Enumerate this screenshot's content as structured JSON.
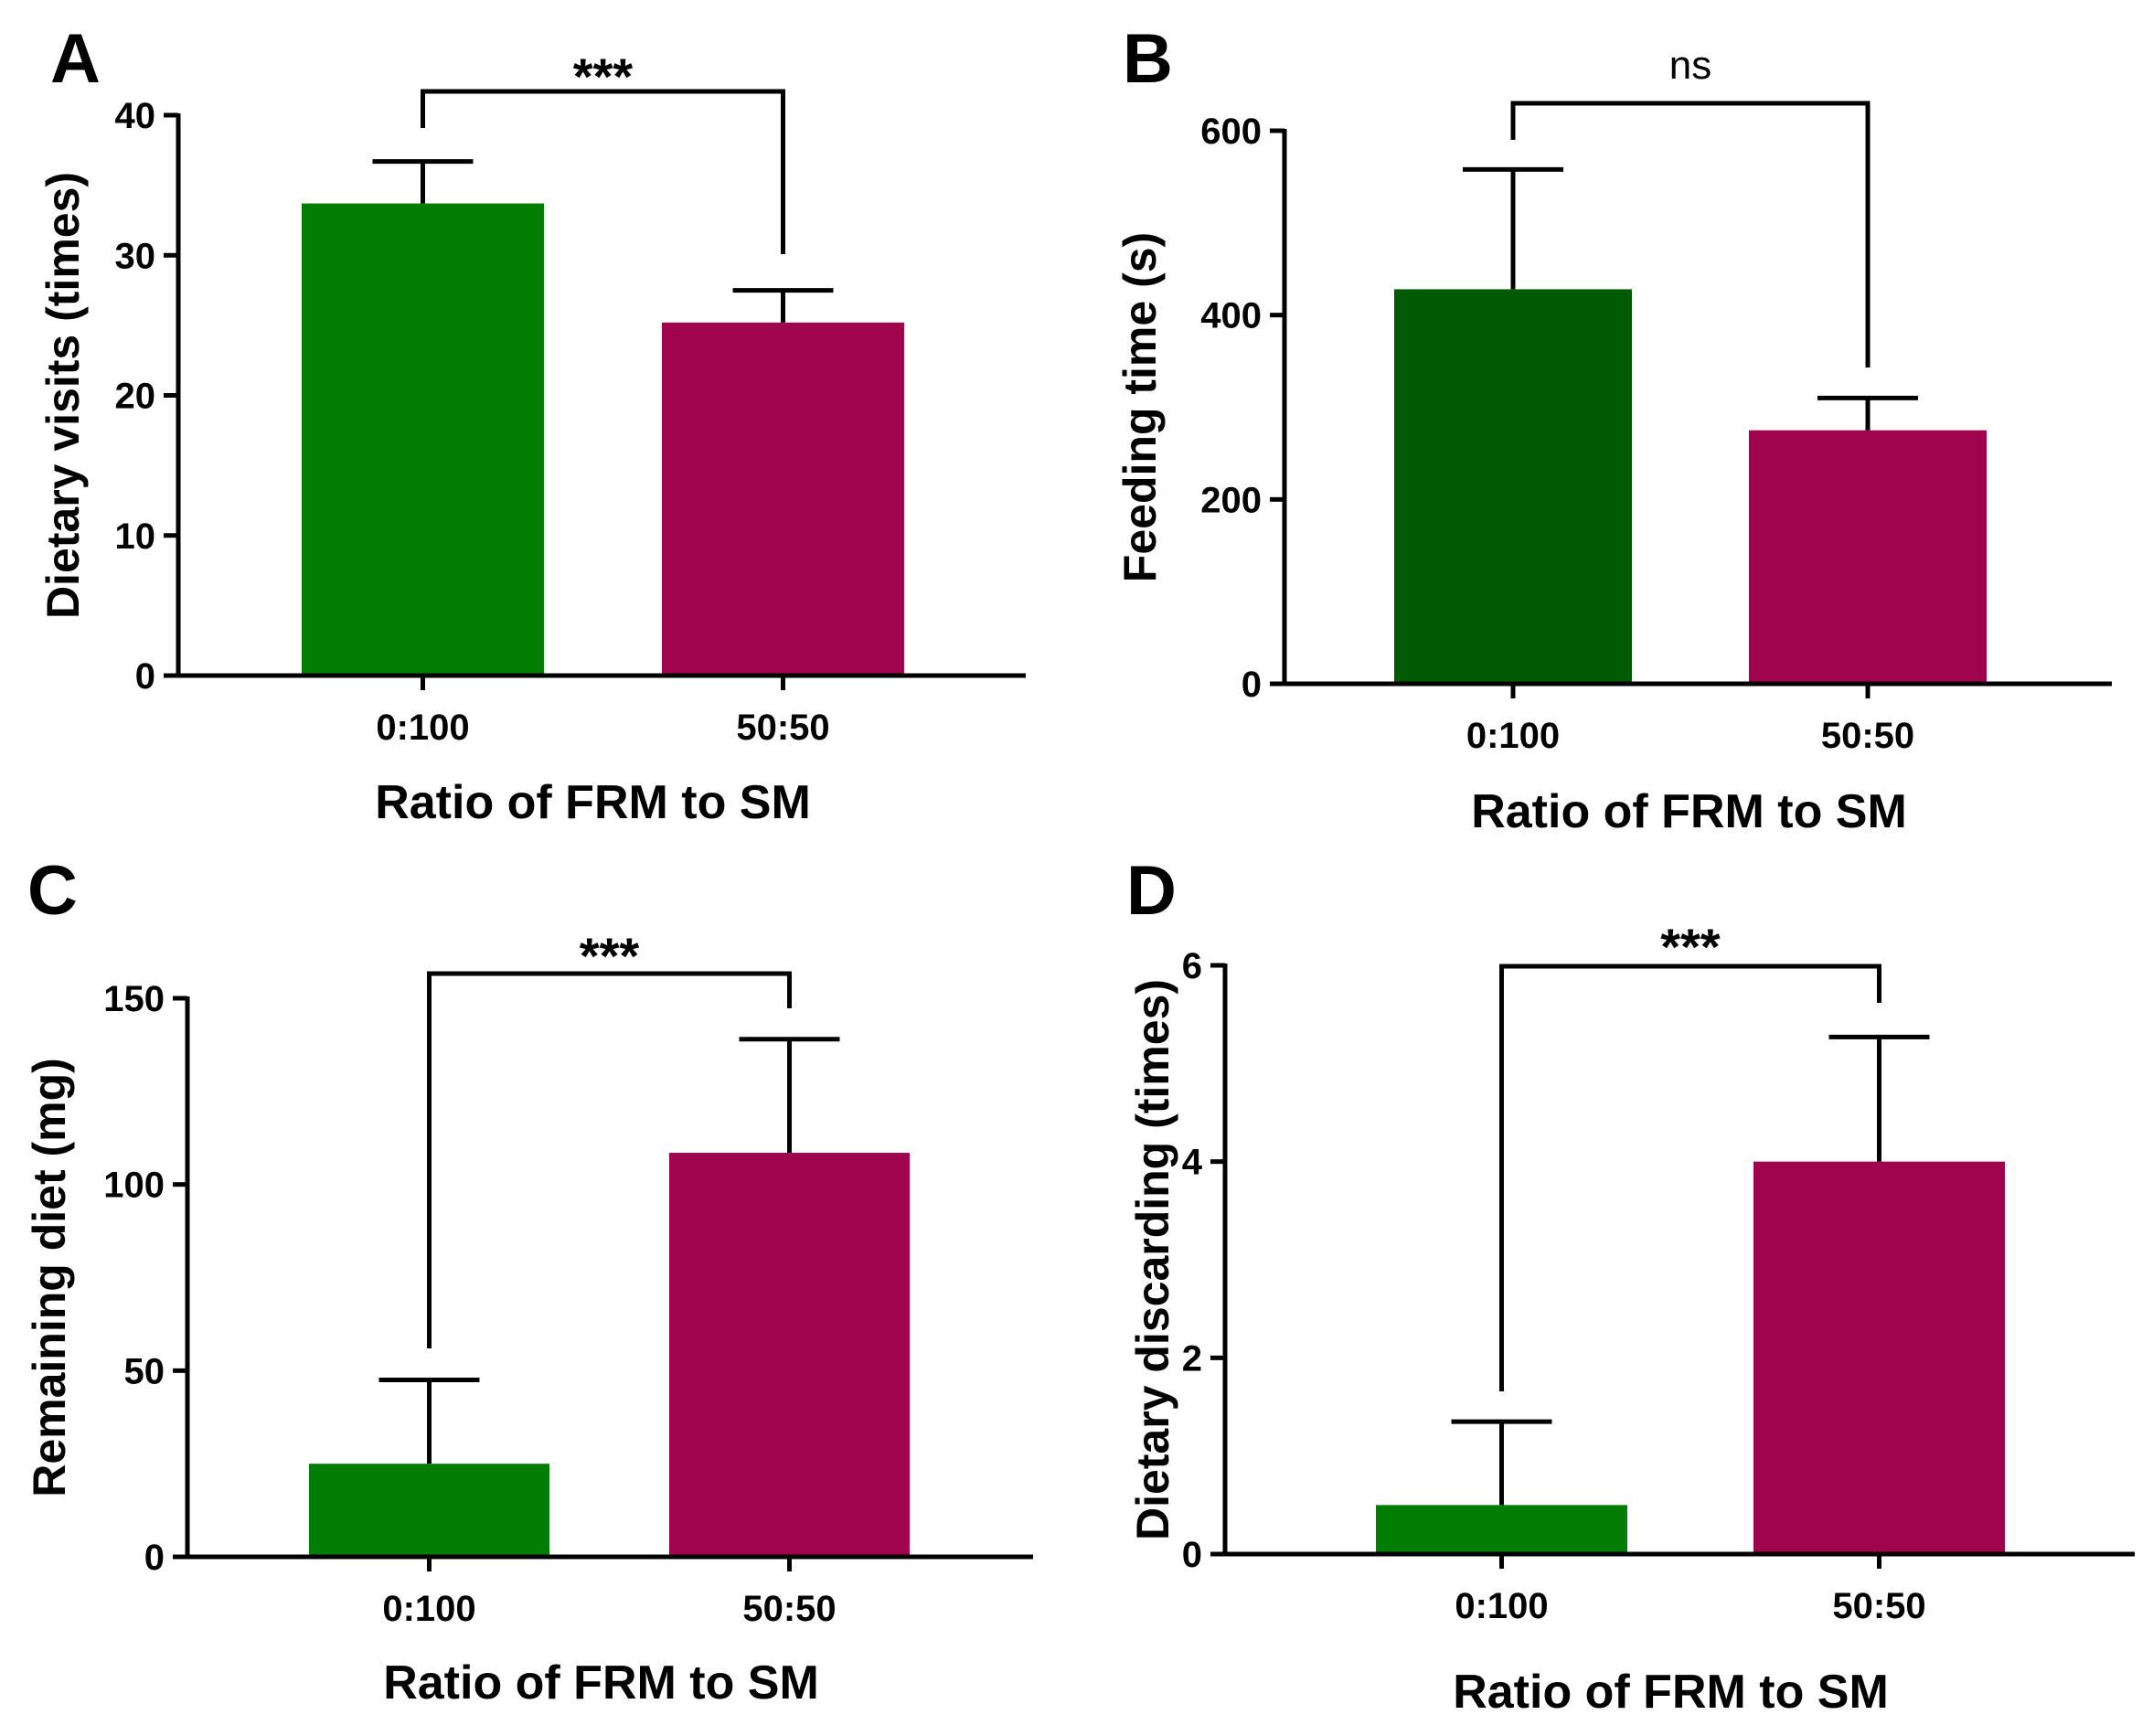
{
  "figure": {
    "colors": {
      "green": "#047d05",
      "dark_green": "#025b04",
      "magenta": "#a0044c"
    }
  },
  "chart_data": [
    {
      "panel": "A",
      "type": "bar",
      "categories": [
        "0:100",
        "50:50"
      ],
      "values": [
        33.7,
        25.2
      ],
      "errors": [
        3.0,
        2.3
      ],
      "colors": [
        "#047d05",
        "#a0044c"
      ],
      "xlabel": "Ratio of FRM to SM",
      "ylabel": "Dietary visits (times)",
      "ylim": [
        0,
        40
      ],
      "yticks": [
        0,
        10,
        20,
        30,
        40
      ],
      "significance": "***"
    },
    {
      "panel": "B",
      "type": "bar",
      "categories": [
        "0:100",
        "50:50"
      ],
      "values": [
        428,
        275
      ],
      "errors": [
        130,
        35
      ],
      "colors": [
        "#025b04",
        "#a0044c"
      ],
      "xlabel": "Ratio of FRM to SM",
      "ylabel": "Feeding time (s)",
      "ylim": [
        0,
        600
      ],
      "yticks": [
        0,
        200,
        400,
        600
      ],
      "significance": "ns"
    },
    {
      "panel": "C",
      "type": "bar",
      "categories": [
        "0:100",
        "50:50"
      ],
      "values": [
        25,
        108.5
      ],
      "errors": [
        22.5,
        30.5
      ],
      "colors": [
        "#047d05",
        "#a0044c"
      ],
      "xlabel": "Ratio of FRM to SM",
      "ylabel": "Remaining diet (mg)",
      "ylim": [
        0,
        150
      ],
      "yticks": [
        0,
        50,
        100,
        150
      ],
      "significance": "***"
    },
    {
      "panel": "D",
      "type": "bar",
      "categories": [
        "0:100",
        "50:50"
      ],
      "values": [
        0.5,
        4.0
      ],
      "errors": [
        0.85,
        1.27
      ],
      "colors": [
        "#047d05",
        "#a0044c"
      ],
      "xlabel": "Ratio of FRM to SM",
      "ylabel": "Dietary discarding (times)",
      "ylim": [
        0,
        6
      ],
      "yticks": [
        0,
        2,
        4,
        6
      ],
      "significance": "***"
    }
  ]
}
